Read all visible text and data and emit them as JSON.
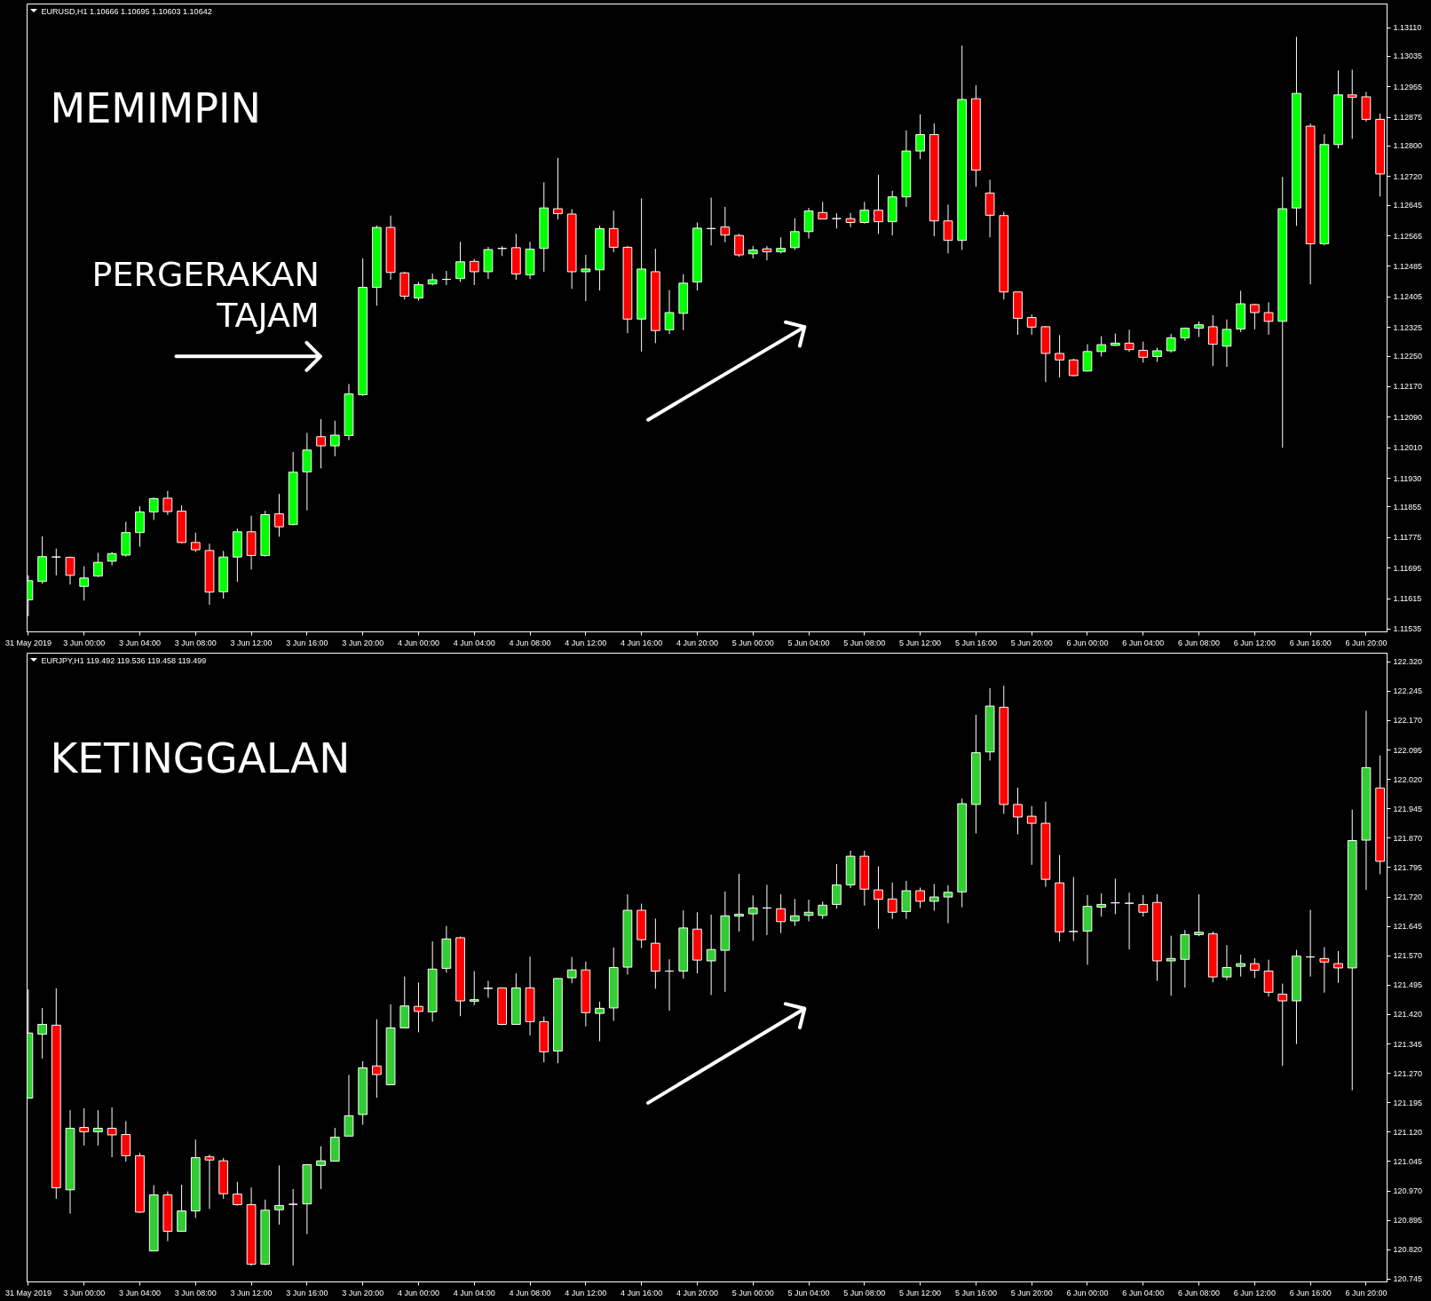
{
  "chart_data": [
    {
      "type": "candlestick",
      "title": "EURUSD,H1 1.10666 1.10695 1.10603 1.10642",
      "annotations": [
        "MEMIMPIN",
        "PERGERAKAN TAJAM"
      ],
      "categories": [
        "31 May 2019",
        null,
        null,
        null,
        "3 Jun 00:00",
        null,
        null,
        null,
        "3 Jun 04:00",
        null,
        null,
        null,
        "3 Jun 08:00",
        null,
        null,
        null,
        "3 Jun 12:00",
        null,
        null,
        null,
        "3 Jun 16:00",
        null,
        null,
        null,
        "3 Jun 20:00",
        null,
        null,
        null,
        "4 Jun 00:00",
        null,
        null,
        null,
        "4 Jun 04:00",
        null,
        null,
        null,
        "4 Jun 08:00",
        null,
        null,
        null,
        "4 Jun 12:00",
        null,
        null,
        null,
        "4 Jun 16:00",
        null,
        null,
        null,
        "4 Jun 20:00",
        null,
        null,
        null,
        "5 Jun 00:00",
        null,
        null,
        null,
        "5 Jun 04:00",
        null,
        null,
        null,
        "5 Jun 08:00",
        null,
        null,
        null,
        "5 Jun 12:00",
        null,
        null,
        null,
        "5 Jun 16:00",
        null,
        null,
        null,
        "5 Jun 20:00",
        null,
        null,
        null,
        "6 Jun 00:00",
        null,
        null,
        null,
        "6 Jun 04:00",
        null,
        null,
        null,
        "6 Jun 08:00",
        null,
        null,
        null,
        "6 Jun 12:00",
        null,
        null,
        null,
        "6 Jun 16:00",
        null,
        null,
        null,
        "6 Jun 20:00",
        null
      ],
      "ohlc": [
        [
          1.11612,
          1.11676,
          1.11569,
          1.11662
        ],
        [
          1.1166,
          1.11778,
          1.11654,
          1.11725
        ],
        [
          1.11724,
          1.11746,
          1.11676,
          1.11724
        ],
        [
          1.11723,
          1.11725,
          1.11652,
          1.11676
        ],
        [
          1.11647,
          1.117,
          1.1161,
          1.11669
        ],
        [
          1.11674,
          1.11735,
          1.11672,
          1.1171
        ],
        [
          1.11713,
          1.11737,
          1.11702,
          1.11733
        ],
        [
          1.11729,
          1.11816,
          1.11725,
          1.11788
        ],
        [
          1.11788,
          1.11857,
          1.11751,
          1.11842
        ],
        [
          1.11842,
          1.1188,
          1.11821,
          1.11877
        ],
        [
          1.11878,
          1.11897,
          1.11834,
          1.11843
        ],
        [
          1.11844,
          1.11859,
          1.1176,
          1.11762
        ],
        [
          1.11762,
          1.11788,
          1.11737,
          1.11743
        ],
        [
          1.11741,
          1.11759,
          1.11599,
          1.11632
        ],
        [
          1.11633,
          1.1174,
          1.11615,
          1.11724
        ],
        [
          1.11724,
          1.11798,
          1.11659,
          1.1179
        ],
        [
          1.1179,
          1.11832,
          1.11691,
          1.11728
        ],
        [
          1.11728,
          1.11845,
          1.11725,
          1.11835
        ],
        [
          1.11837,
          1.11889,
          1.11777,
          1.11803
        ],
        [
          1.11809,
          1.11999,
          1.11807,
          1.11946
        ],
        [
          1.11947,
          1.12049,
          1.11846,
          1.12004
        ],
        [
          1.12039,
          1.12085,
          1.11956,
          1.12015
        ],
        [
          1.12015,
          1.12081,
          1.11988,
          1.12043
        ],
        [
          1.12042,
          1.12177,
          1.1203,
          1.12151
        ],
        [
          1.12149,
          1.12506,
          1.12146,
          1.1243
        ],
        [
          1.1243,
          1.12592,
          1.12382,
          1.12587
        ],
        [
          1.12587,
          1.12618,
          1.1245,
          1.12469
        ],
        [
          1.12468,
          1.12471,
          1.12398,
          1.12407
        ],
        [
          1.12402,
          1.12444,
          1.12395,
          1.12437
        ],
        [
          1.12439,
          1.12466,
          1.12435,
          1.1245
        ],
        [
          1.12451,
          1.12473,
          1.12436,
          1.12451
        ],
        [
          1.12453,
          1.12549,
          1.12444,
          1.12497
        ],
        [
          1.12498,
          1.12504,
          1.12436,
          1.12471
        ],
        [
          1.12471,
          1.12536,
          1.12452,
          1.12529
        ],
        [
          1.12532,
          1.12538,
          1.12512,
          1.12532
        ],
        [
          1.12534,
          1.1257,
          1.1245,
          1.12465
        ],
        [
          1.12463,
          1.12549,
          1.12452,
          1.1253
        ],
        [
          1.12532,
          1.12705,
          1.12471,
          1.12638
        ],
        [
          1.12636,
          1.12769,
          1.12608,
          1.12623
        ],
        [
          1.12622,
          1.12635,
          1.12426,
          1.12471
        ],
        [
          1.12471,
          1.12515,
          1.12394,
          1.12478
        ],
        [
          1.12476,
          1.12591,
          1.12422,
          1.12584
        ],
        [
          1.12584,
          1.12631,
          1.12522,
          1.12535
        ],
        [
          1.12535,
          1.12539,
          1.1231,
          1.12347
        ],
        [
          1.12347,
          1.12663,
          1.12262,
          1.12478
        ],
        [
          1.12471,
          1.12531,
          1.12284,
          1.12317
        ],
        [
          1.12319,
          1.12423,
          1.12308,
          1.12364
        ],
        [
          1.12362,
          1.12464,
          1.12318,
          1.12441
        ],
        [
          1.12444,
          1.126,
          1.12422,
          1.12585
        ],
        [
          1.12584,
          1.12665,
          1.1254,
          1.12584
        ],
        [
          1.12588,
          1.12641,
          1.12548,
          1.12567
        ],
        [
          1.12566,
          1.1257,
          1.1251,
          1.12515
        ],
        [
          1.12518,
          1.12538,
          1.12506,
          1.12528
        ],
        [
          1.12531,
          1.12538,
          1.12501,
          1.12523
        ],
        [
          1.12523,
          1.12561,
          1.12519,
          1.12532
        ],
        [
          1.12534,
          1.12611,
          1.12528,
          1.12576
        ],
        [
          1.12576,
          1.12638,
          1.12558,
          1.1263
        ],
        [
          1.12626,
          1.12654,
          1.12608,
          1.12609
        ],
        [
          1.1261,
          1.12624,
          1.12584,
          1.1261
        ],
        [
          1.1261,
          1.12625,
          1.12588,
          1.126
        ],
        [
          1.126,
          1.12654,
          1.12597,
          1.12632
        ],
        [
          1.12632,
          1.12725,
          1.1257,
          1.12602
        ],
        [
          1.12602,
          1.12683,
          1.12566,
          1.12667
        ],
        [
          1.12667,
          1.12841,
          1.12641,
          1.12787
        ],
        [
          1.12787,
          1.12883,
          1.12766,
          1.1283
        ],
        [
          1.1283,
          1.12859,
          1.12564,
          1.12604
        ],
        [
          1.12604,
          1.12647,
          1.12519,
          1.12553
        ],
        [
          1.12553,
          1.13063,
          1.12528,
          1.12922
        ],
        [
          1.12924,
          1.12959,
          1.12694,
          1.12737
        ],
        [
          1.12677,
          1.12712,
          1.12561,
          1.12619
        ],
        [
          1.12618,
          1.12628,
          1.12398,
          1.12418
        ],
        [
          1.12418,
          1.12418,
          1.12306,
          1.12349
        ],
        [
          1.12351,
          1.12359,
          1.12306,
          1.12326
        ],
        [
          1.12327,
          1.12329,
          1.12182,
          1.12257
        ],
        [
          1.12257,
          1.12305,
          1.12194,
          1.1224
        ],
        [
          1.1224,
          1.12243,
          1.12197,
          1.12199
        ],
        [
          1.12211,
          1.12281,
          1.12209,
          1.12262
        ],
        [
          1.12262,
          1.12302,
          1.12249,
          1.1228
        ],
        [
          1.12278,
          1.12309,
          1.12277,
          1.12284
        ],
        [
          1.12284,
          1.12319,
          1.12261,
          1.12267
        ],
        [
          1.12265,
          1.12288,
          1.12233,
          1.12247
        ],
        [
          1.12249,
          1.12272,
          1.12235,
          1.12264
        ],
        [
          1.12264,
          1.12308,
          1.12259,
          1.12298
        ],
        [
          1.12298,
          1.12325,
          1.1229,
          1.12323
        ],
        [
          1.12323,
          1.12341,
          1.123,
          1.12332
        ],
        [
          1.12327,
          1.12357,
          1.12224,
          1.12281
        ],
        [
          1.12276,
          1.12346,
          1.12222,
          1.1232
        ],
        [
          1.12321,
          1.12421,
          1.12313,
          1.12387
        ],
        [
          1.12385,
          1.12387,
          1.1232,
          1.12364
        ],
        [
          1.12364,
          1.12391,
          1.12306,
          1.12341
        ],
        [
          1.12341,
          1.12719,
          1.1201,
          1.12636
        ],
        [
          1.12638,
          1.13086,
          1.12591,
          1.12938
        ],
        [
          1.12852,
          1.12859,
          1.12438,
          1.12544
        ],
        [
          1.12544,
          1.12831,
          1.1254,
          1.12804
        ],
        [
          1.12804,
          1.12998,
          1.12794,
          1.12934
        ],
        [
          1.12934,
          1.13,
          1.12819,
          1.12928
        ],
        [
          1.12929,
          1.12942,
          1.12864,
          1.1287
        ],
        [
          1.1287,
          1.12885,
          1.12668,
          1.12727
        ]
      ],
      "colors": [
        "#00ff00",
        "#00ff00",
        "#ffffff",
        "#ff0000",
        "#00ff00",
        "#00ff00",
        "#00ff00",
        "#00ff00",
        "#00ff00",
        "#00ff00",
        "#ff0000",
        "#ff0000",
        "#ff0000",
        "#ff0000",
        "#00ff00",
        "#00ff00",
        "#ff0000",
        "#00ff00",
        "#ff0000",
        "#00ff00",
        "#00ff00",
        "#ff0000",
        "#00ff00",
        "#00ff00",
        "#00ff00",
        "#00ff00",
        "#ff0000",
        "#ff0000",
        "#00ff00",
        "#00ff00",
        "#ffffff",
        "#00ff00",
        "#ff0000",
        "#00ff00",
        "#ffffff",
        "#ff0000",
        "#00ff00",
        "#00ff00",
        "#ff0000",
        "#ff0000",
        "#00ff00",
        "#00ff00",
        "#ff0000",
        "#ff0000",
        "#00ff00",
        "#ff0000",
        "#00ff00",
        "#00ff00",
        "#00ff00",
        "#ffffff",
        "#ff0000",
        "#ff0000",
        "#00ff00",
        "#ff0000",
        "#00ff00",
        "#00ff00",
        "#00ff00",
        "#ff0000",
        "#ffffff",
        "#ff0000",
        "#00ff00",
        "#ff0000",
        "#00ff00",
        "#00ff00",
        "#00ff00",
        "#ff0000",
        "#ff0000",
        "#00ff00",
        "#ff0000",
        "#ff0000",
        "#ff0000",
        "#ff0000",
        "#ff0000",
        "#ff0000",
        "#ff0000",
        "#ff0000",
        "#00ff00",
        "#00ff00",
        "#00ff00",
        "#ff0000",
        "#ff0000",
        "#00ff00",
        "#00ff00",
        "#00ff00",
        "#00ff00",
        "#ff0000",
        "#00ff00",
        "#00ff00",
        "#ff0000",
        "#ff0000",
        "#00ff00",
        "#00ff00",
        "#ff0000",
        "#00ff00",
        "#00ff00",
        "#ff0000",
        "#ff0000",
        "#ff0000"
      ],
      "ylim": [
        1.11528,
        1.13172
      ],
      "yticks": [
        {
          "value": 1.1311,
          "label": "1.13110"
        },
        1.13035,
        1.12955,
        1.12875,
        {
          "value": 1.128,
          "label": "1.12800"
        },
        {
          "value": 1.1272,
          "label": "1.12720"
        },
        1.12645,
        1.12565,
        1.12485,
        1.12405,
        1.12325,
        {
          "value": 1.1225,
          "label": "1.12250"
        },
        {
          "value": 1.1217,
          "label": "1.12170"
        },
        {
          "value": 1.1209,
          "label": "1.12090"
        },
        {
          "value": 1.1201,
          "label": "1.12010"
        },
        {
          "value": 1.1193,
          "label": "1.11930"
        },
        1.11855,
        1.11775,
        1.11695,
        1.11615,
        1.11535
      ]
    },
    {
      "type": "candlestick",
      "title": "EURJPY,H1 119.492 119.536 119.458 119.499",
      "annotations": [
        "KETINGGALAN"
      ],
      "categories": [
        "31 May 2019",
        null,
        null,
        null,
        "3 Jun 00:00",
        null,
        null,
        null,
        "3 Jun 04:00",
        null,
        null,
        null,
        "3 Jun 08:00",
        null,
        null,
        null,
        "3 Jun 12:00",
        null,
        null,
        null,
        "3 Jun 16:00",
        null,
        null,
        null,
        "3 Jun 20:00",
        null,
        null,
        null,
        "4 Jun 00:00",
        null,
        null,
        null,
        "4 Jun 04:00",
        null,
        null,
        null,
        "4 Jun 08:00",
        null,
        null,
        null,
        "4 Jun 12:00",
        null,
        null,
        null,
        "4 Jun 16:00",
        null,
        null,
        null,
        "4 Jun 20:00",
        null,
        null,
        null,
        "5 Jun 00:00",
        null,
        null,
        null,
        "5 Jun 04:00",
        null,
        null,
        null,
        "5 Jun 08:00",
        null,
        null,
        null,
        "5 Jun 12:00",
        null,
        null,
        null,
        "5 Jun 16:00",
        null,
        null,
        null,
        "5 Jun 20:00",
        null,
        null,
        null,
        "6 Jun 00:00",
        null,
        null,
        null,
        "6 Jun 04:00",
        null,
        null,
        null,
        "6 Jun 08:00",
        null,
        null,
        null,
        "6 Jun 12:00",
        null,
        null,
        null,
        "6 Jun 16:00",
        null,
        null,
        null,
        "6 Jun 20:00",
        null
      ],
      "ohlc": [
        [
          121.207,
          121.484,
          121.207,
          121.373
        ],
        [
          121.37,
          121.437,
          121.308,
          121.395
        ],
        [
          121.393,
          121.487,
          120.95,
          120.978
        ],
        [
          120.973,
          121.176,
          120.912,
          121.13
        ],
        [
          121.132,
          121.181,
          121.086,
          121.121
        ],
        [
          121.121,
          121.176,
          121.086,
          121.13
        ],
        [
          121.13,
          121.183,
          121.056,
          121.113
        ],
        [
          121.114,
          121.148,
          121.045,
          121.06
        ],
        [
          121.06,
          121.067,
          120.914,
          120.916
        ],
        [
          120.817,
          120.985,
          120.817,
          120.96
        ],
        [
          120.96,
          120.969,
          120.842,
          120.867
        ],
        [
          120.867,
          120.986,
          120.867,
          120.919
        ],
        [
          120.919,
          121.101,
          120.901,
          121.055
        ],
        [
          121.057,
          121.063,
          120.924,
          121.049
        ],
        [
          121.047,
          121.054,
          120.95,
          120.963
        ],
        [
          120.962,
          120.993,
          120.933,
          120.935
        ],
        [
          120.935,
          120.979,
          120.779,
          120.783
        ],
        [
          120.783,
          120.948,
          120.781,
          120.921
        ],
        [
          120.922,
          121.035,
          120.884,
          120.933
        ],
        [
          120.936,
          120.975,
          120.78,
          120.936
        ],
        [
          120.937,
          121.037,
          120.86,
          121.037
        ],
        [
          121.035,
          121.084,
          120.975,
          121.047
        ],
        [
          121.046,
          121.131,
          121.045,
          121.107
        ],
        [
          121.11,
          121.266,
          121.11,
          121.162
        ],
        [
          121.165,
          121.301,
          121.139,
          121.284
        ],
        [
          121.289,
          121.408,
          121.208,
          121.267
        ],
        [
          121.241,
          121.446,
          121.241,
          121.386
        ],
        [
          121.386,
          121.517,
          121.386,
          121.442
        ],
        [
          121.441,
          121.502,
          121.375,
          121.428
        ],
        [
          121.427,
          121.607,
          121.402,
          121.536
        ],
        [
          121.538,
          121.646,
          121.527,
          121.613
        ],
        [
          121.616,
          121.619,
          121.416,
          121.455
        ],
        [
          121.454,
          121.531,
          121.444,
          121.458
        ],
        [
          121.487,
          121.506,
          121.463,
          121.487
        ],
        [
          121.488,
          121.488,
          121.393,
          121.395
        ],
        [
          121.395,
          121.525,
          121.395,
          121.488
        ],
        [
          121.488,
          121.568,
          121.367,
          121.402
        ],
        [
          121.402,
          121.415,
          121.298,
          121.325
        ],
        [
          121.327,
          121.512,
          121.296,
          121.512
        ],
        [
          121.514,
          121.567,
          121.5,
          121.534
        ],
        [
          121.534,
          121.555,
          121.39,
          121.425
        ],
        [
          121.423,
          121.453,
          121.352,
          121.436
        ],
        [
          121.437,
          121.591,
          121.404,
          121.54
        ],
        [
          121.541,
          121.727,
          121.522,
          121.686
        ],
        [
          121.686,
          121.703,
          121.59,
          121.611
        ],
        [
          121.602,
          121.665,
          121.486,
          121.531
        ],
        [
          121.531,
          121.561,
          121.43,
          121.531
        ],
        [
          121.531,
          121.686,
          121.512,
          121.641
        ],
        [
          121.638,
          121.681,
          121.525,
          121.559
        ],
        [
          121.557,
          121.675,
          121.47,
          121.586
        ],
        [
          121.584,
          121.734,
          121.478,
          121.672
        ],
        [
          121.671,
          121.779,
          121.632,
          121.676
        ],
        [
          121.677,
          121.724,
          121.608,
          121.692
        ],
        [
          121.692,
          121.751,
          121.623,
          121.692
        ],
        [
          121.69,
          121.727,
          121.628,
          121.657
        ],
        [
          121.659,
          121.715,
          121.646,
          121.672
        ],
        [
          121.673,
          121.713,
          121.658,
          121.681
        ],
        [
          121.673,
          121.708,
          121.664,
          121.699
        ],
        [
          121.701,
          121.804,
          121.69,
          121.751
        ],
        [
          121.751,
          121.838,
          121.743,
          121.824
        ],
        [
          121.824,
          121.838,
          121.698,
          121.74
        ],
        [
          121.738,
          121.798,
          121.639,
          121.714
        ],
        [
          121.715,
          121.757,
          121.664,
          121.681
        ],
        [
          121.683,
          121.761,
          121.664,
          121.736
        ],
        [
          121.736,
          121.744,
          121.692,
          121.709
        ],
        [
          121.709,
          121.753,
          121.685,
          121.72
        ],
        [
          121.72,
          121.75,
          121.653,
          121.732
        ],
        [
          121.733,
          121.971,
          121.694,
          121.958
        ],
        [
          121.956,
          122.185,
          121.882,
          122.088
        ],
        [
          122.09,
          122.253,
          122.068,
          122.207
        ],
        [
          122.204,
          122.259,
          121.932,
          121.956
        ],
        [
          121.956,
          121.999,
          121.88,
          121.924
        ],
        [
          121.926,
          121.952,
          121.802,
          121.908
        ],
        [
          121.908,
          121.963,
          121.746,
          121.765
        ],
        [
          121.756,
          121.827,
          121.606,
          121.631
        ],
        [
          121.632,
          121.771,
          121.608,
          121.632
        ],
        [
          121.633,
          121.725,
          121.547,
          121.696
        ],
        [
          121.694,
          121.729,
          121.67,
          121.701
        ],
        [
          121.705,
          121.767,
          121.676,
          121.705
        ],
        [
          121.704,
          121.731,
          121.586,
          121.704
        ],
        [
          121.701,
          121.725,
          121.67,
          121.681
        ],
        [
          121.706,
          121.727,
          121.506,
          121.557
        ],
        [
          121.557,
          121.621,
          121.468,
          121.563
        ],
        [
          121.561,
          121.636,
          121.489,
          121.624
        ],
        [
          121.624,
          121.727,
          121.62,
          121.63
        ],
        [
          121.626,
          121.632,
          121.502,
          121.516
        ],
        [
          121.516,
          121.597,
          121.508,
          121.54
        ],
        [
          121.543,
          121.573,
          121.517,
          121.55
        ],
        [
          121.55,
          121.564,
          121.513,
          121.533
        ],
        [
          121.531,
          121.56,
          121.466,
          121.477
        ],
        [
          121.472,
          121.499,
          121.289,
          121.455
        ],
        [
          121.455,
          121.585,
          121.345,
          121.569
        ],
        [
          121.567,
          121.687,
          121.517,
          121.567
        ],
        [
          121.563,
          121.592,
          121.476,
          121.554
        ],
        [
          121.55,
          121.582,
          121.501,
          121.539
        ],
        [
          121.539,
          121.943,
          121.227,
          121.864
        ],
        [
          121.865,
          122.195,
          121.738,
          122.05
        ],
        [
          121.998,
          122.081,
          121.778,
          121.811
        ]
      ],
      "colors": [
        "#32cd32",
        "#32cd32",
        "#ff0000",
        "#32cd32",
        "#ff0000",
        "#32cd32",
        "#ff0000",
        "#ff0000",
        "#ff0000",
        "#32cd32",
        "#ff0000",
        "#32cd32",
        "#32cd32",
        "#ff0000",
        "#ff0000",
        "#ff0000",
        "#ff0000",
        "#32cd32",
        "#32cd32",
        "#ffffff",
        "#32cd32",
        "#32cd32",
        "#32cd32",
        "#32cd32",
        "#32cd32",
        "#ff0000",
        "#32cd32",
        "#32cd32",
        "#ff0000",
        "#32cd32",
        "#32cd32",
        "#ff0000",
        "#32cd32",
        "#ffffff",
        "#ff0000",
        "#32cd32",
        "#ff0000",
        "#ff0000",
        "#32cd32",
        "#32cd32",
        "#ff0000",
        "#32cd32",
        "#32cd32",
        "#32cd32",
        "#ff0000",
        "#ff0000",
        "#ffffff",
        "#32cd32",
        "#ff0000",
        "#32cd32",
        "#32cd32",
        "#32cd32",
        "#32cd32",
        "#ffffff",
        "#ff0000",
        "#32cd32",
        "#32cd32",
        "#32cd32",
        "#32cd32",
        "#32cd32",
        "#ff0000",
        "#ff0000",
        "#ff0000",
        "#32cd32",
        "#ff0000",
        "#32cd32",
        "#32cd32",
        "#32cd32",
        "#32cd32",
        "#32cd32",
        "#ff0000",
        "#ff0000",
        "#ff0000",
        "#ff0000",
        "#ff0000",
        "#ffffff",
        "#32cd32",
        "#32cd32",
        "#ffffff",
        "#ffffff",
        "#ff0000",
        "#ff0000",
        "#32cd32",
        "#32cd32",
        "#32cd32",
        "#ff0000",
        "#32cd32",
        "#32cd32",
        "#ff0000",
        "#ff0000",
        "#ff0000",
        "#32cd32",
        "#ffffff",
        "#ff0000",
        "#ff0000",
        "#32cd32",
        "#32cd32",
        "#ff0000"
      ],
      "ylim": [
        120.738,
        122.342
      ],
      "yticks": [
        {
          "value": 122.32,
          "label": "122.320"
        },
        122.245,
        {
          "value": 122.17,
          "label": "122.170"
        },
        122.095,
        {
          "value": 122.02,
          "label": "122.020"
        },
        121.945,
        {
          "value": 121.87,
          "label": "121.870"
        },
        121.795,
        {
          "value": 121.72,
          "label": "121.720"
        },
        121.645,
        {
          "value": 121.57,
          "label": "121.570"
        },
        121.495,
        {
          "value": 121.42,
          "label": "121.420"
        },
        121.345,
        {
          "value": 121.27,
          "label": "121.270"
        },
        121.195,
        {
          "value": 121.12,
          "label": "121.120"
        },
        121.045,
        {
          "value": 120.97,
          "label": "120.970"
        },
        120.895,
        {
          "value": 120.82,
          "label": "120.820"
        },
        120.745
      ]
    }
  ]
}
